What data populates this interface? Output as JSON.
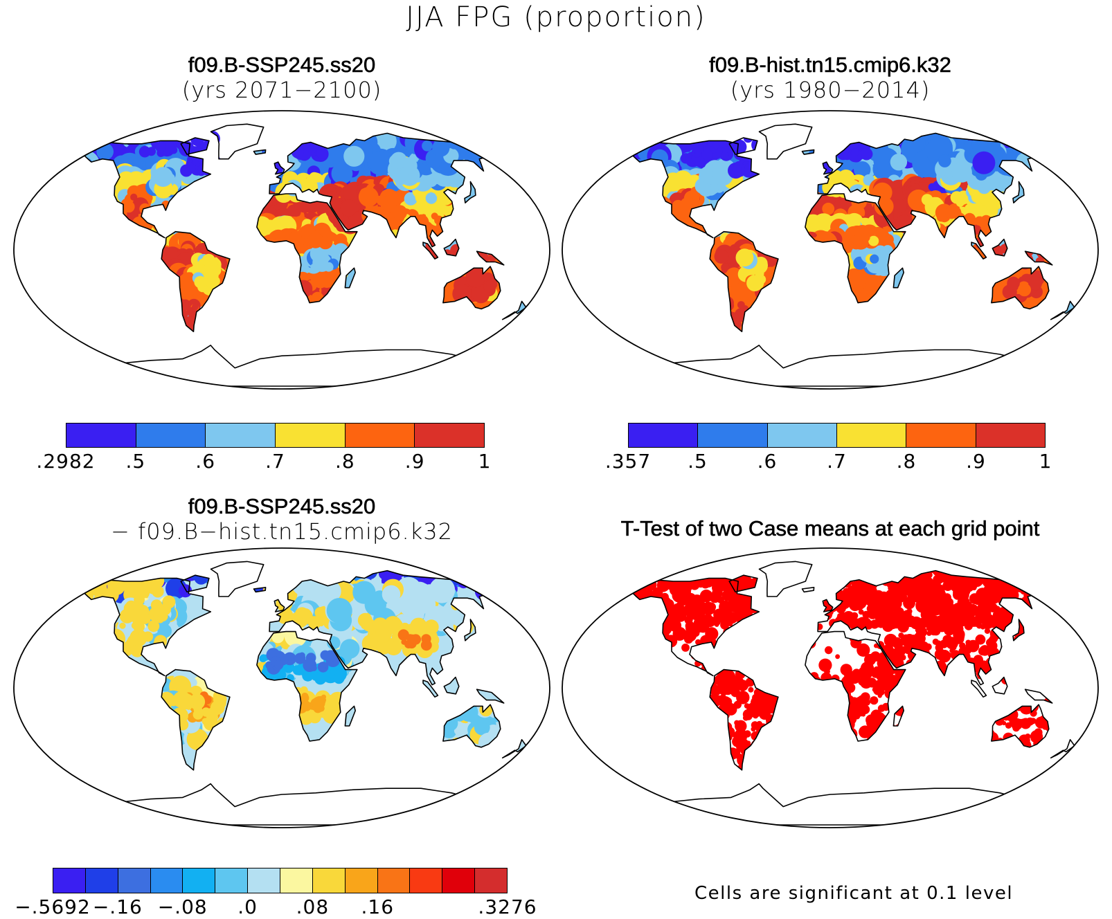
{
  "title": "JJA FPG (proportion)",
  "panels": {
    "top_left": {
      "title": "f09.B-SSP245.ss20",
      "subtitle": "(yrs 2071−2100)"
    },
    "top_right": {
      "title": "f09.B-hist.tn15.cmip6.k32",
      "subtitle": "(yrs 1980−2014)"
    },
    "bottom_left": {
      "title": "f09.B-SSP245.ss20",
      "subtitle": "− f09.B−hist.tn15.cmip6.k32"
    },
    "bottom_right": {
      "title": "T-Test of two Case means at each grid point"
    }
  },
  "colorbars": {
    "top_left": {
      "colors": [
        "#3a1ff2",
        "#2f7cec",
        "#7ec7ef",
        "#f9e132",
        "#fd6410",
        "#db3129"
      ],
      "labels": [
        ".2982",
        ".5",
        ".6",
        ".7",
        ".8",
        ".9",
        "1"
      ]
    },
    "top_right": {
      "colors": [
        "#3a1ff2",
        "#2f7cec",
        "#7ec7ef",
        "#f9e132",
        "#fd6410",
        "#db3129"
      ],
      "labels": [
        ".357",
        ".5",
        ".6",
        ".7",
        ".8",
        ".9",
        "1"
      ]
    },
    "difference": {
      "colors": [
        "#3a1ff2",
        "#1f3fe8",
        "#3d6fe0",
        "#2a8cf0",
        "#12b0f2",
        "#5ec6f0",
        "#b4e0f2",
        "#fbf7a0",
        "#f9d83a",
        "#f9a51a",
        "#f97416",
        "#f93a12",
        "#e0000a",
        "#d42d2d"
      ],
      "labels": [
        "−.5692",
        "−.16",
        "−.08",
        ".0",
        ".08",
        ".16",
        ".3276"
      ]
    }
  },
  "significance": {
    "caption": "Cells are significant at 0.1 level",
    "color": "#ff0000"
  }
}
